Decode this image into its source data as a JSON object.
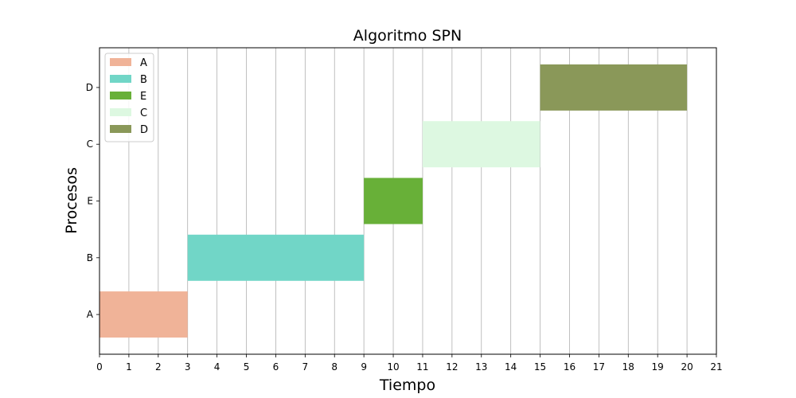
{
  "chart_data": {
    "type": "gantt",
    "title": "Algoritmo SPN",
    "xlabel": "Tiempo",
    "ylabel": "Procesos",
    "xlim": [
      0,
      21
    ],
    "xticks": [
      "0",
      "1",
      "2",
      "3",
      "4",
      "5",
      "6",
      "7",
      "8",
      "9",
      "10",
      "11",
      "12",
      "13",
      "14",
      "15",
      "16",
      "17",
      "18",
      "19",
      "20",
      "21"
    ],
    "categories": [
      "A",
      "B",
      "E",
      "C",
      "D"
    ],
    "grid": "vertical",
    "legend_position": "top-left",
    "series": [
      {
        "name": "A",
        "start": 0,
        "end": 3,
        "color": "#F0B398"
      },
      {
        "name": "B",
        "start": 3,
        "end": 9,
        "color": "#71D6C7"
      },
      {
        "name": "E",
        "start": 9,
        "end": 11,
        "color": "#68B038"
      },
      {
        "name": "C",
        "start": 11,
        "end": 15,
        "color": "#DDF8E1"
      },
      {
        "name": "D",
        "start": 15,
        "end": 20,
        "color": "#8A9859"
      }
    ]
  }
}
